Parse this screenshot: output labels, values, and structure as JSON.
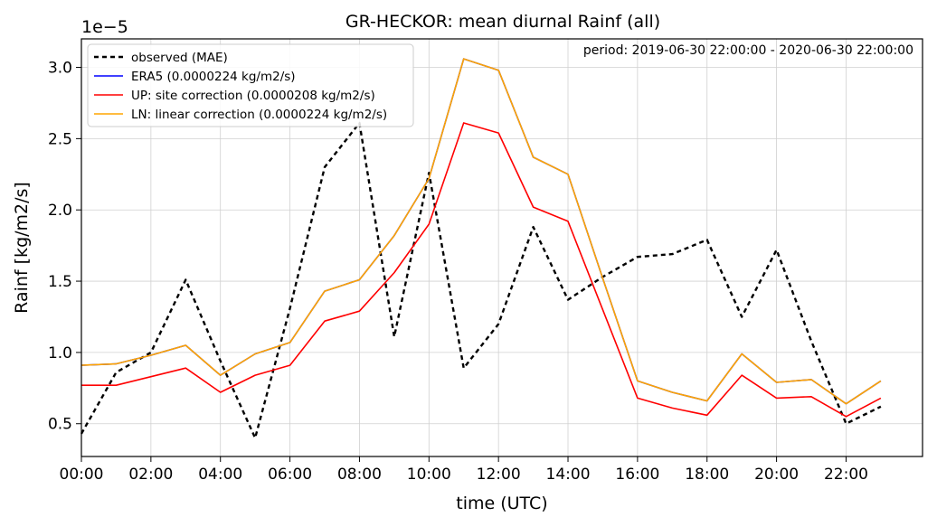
{
  "chart_data": {
    "type": "line",
    "title": "GR-HECKOR: mean diurnal Rainf (all)",
    "xlabel": "time (UTC)",
    "ylabel": "Rainf [kg/m2/s]",
    "y_offset_label": "1e−5",
    "annotation": "period: 2019-06-30 22:00:00 - 2020-06-30 22:00:00",
    "x_range": [
      0,
      24.2
    ],
    "y_range": [
      2.7e-06,
      3.2e-05
    ],
    "x_ticks": [
      0,
      2,
      4,
      6,
      8,
      10,
      12,
      14,
      16,
      18,
      20,
      22
    ],
    "x_tick_labels": [
      "00:00",
      "02:00",
      "04:00",
      "06:00",
      "08:00",
      "10:00",
      "12:00",
      "14:00",
      "16:00",
      "18:00",
      "20:00",
      "22:00"
    ],
    "y_ticks": [
      5e-06,
      1e-05,
      1.5e-05,
      2e-05,
      2.5e-05,
      3e-05
    ],
    "y_tick_labels": [
      "0.5",
      "1.0",
      "1.5",
      "2.0",
      "2.5",
      "3.0"
    ],
    "grid": true,
    "legend_position": "top-left",
    "x": [
      0,
      1,
      2,
      3,
      4,
      5,
      6,
      7,
      8,
      9,
      10,
      11,
      12,
      13,
      14,
      15,
      16,
      17,
      18,
      19,
      20,
      21,
      22,
      23
    ],
    "series": [
      {
        "name": "observed (MAE)",
        "color": "#000000",
        "dash": true,
        "values": [
          4.3e-06,
          8.6e-06,
          1e-05,
          1.51e-05,
          9.4e-06,
          4e-06,
          1.31e-05,
          2.3e-05,
          2.61e-05,
          1.11e-05,
          2.26e-05,
          8.9e-06,
          1.2e-05,
          1.88e-05,
          1.37e-05,
          1.53e-05,
          1.67e-05,
          1.69e-05,
          1.79e-05,
          1.25e-05,
          1.72e-05,
          1.08e-05,
          5e-06,
          6.2e-06
        ]
      },
      {
        "name": "ERA5 (0.0000224 kg/m2/s)",
        "color": "#0000ff",
        "dash": false,
        "values": [
          9.1e-06,
          9.2e-06,
          9.8e-06,
          1.05e-05,
          8.4e-06,
          9.9e-06,
          1.07e-05,
          1.43e-05,
          1.51e-05,
          1.82e-05,
          2.22e-05,
          3.06e-05,
          2.98e-05,
          2.37e-05,
          2.25e-05,
          1.52e-05,
          8e-06,
          7.2e-06,
          6.6e-06,
          9.9e-06,
          7.9e-06,
          8.1e-06,
          6.4e-06,
          8e-06
        ]
      },
      {
        "name": "UP: site correction (0.0000208 kg/m2/s)",
        "color": "#ff0000",
        "dash": false,
        "values": [
          7.7e-06,
          7.7e-06,
          8.3e-06,
          8.9e-06,
          7.2e-06,
          8.4e-06,
          9.1e-06,
          1.22e-05,
          1.29e-05,
          1.56e-05,
          1.9e-05,
          2.61e-05,
          2.54e-05,
          2.02e-05,
          1.92e-05,
          1.3e-05,
          6.8e-06,
          6.1e-06,
          5.6e-06,
          8.4e-06,
          6.8e-06,
          6.9e-06,
          5.5e-06,
          6.8e-06
        ]
      },
      {
        "name": "LN: linear correction (0.0000224 kg/m2/s)",
        "color": "#ffa500",
        "dash": false,
        "values": [
          9.1e-06,
          9.2e-06,
          9.8e-06,
          1.05e-05,
          8.4e-06,
          9.9e-06,
          1.07e-05,
          1.43e-05,
          1.51e-05,
          1.82e-05,
          2.22e-05,
          3.06e-05,
          2.98e-05,
          2.37e-05,
          2.25e-05,
          1.52e-05,
          8e-06,
          7.2e-06,
          6.6e-06,
          9.9e-06,
          7.9e-06,
          8.1e-06,
          6.4e-06,
          8e-06
        ]
      }
    ]
  }
}
